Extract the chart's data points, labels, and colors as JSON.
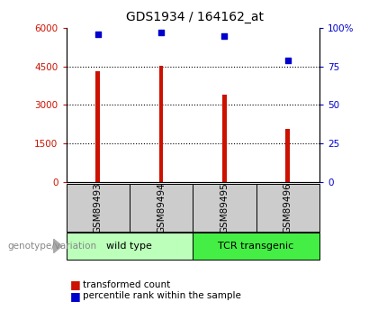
{
  "title": "GDS1934 / 164162_at",
  "samples": [
    "GSM89493",
    "GSM89494",
    "GSM89495",
    "GSM89496"
  ],
  "bar_values": [
    4300,
    4520,
    3400,
    2050
  ],
  "percentile_values": [
    96,
    97,
    95,
    79
  ],
  "bar_color": "#cc1100",
  "dot_color": "#0000cc",
  "ylim_left": [
    0,
    6000
  ],
  "ylim_right": [
    0,
    100
  ],
  "yticks_left": [
    0,
    1500,
    3000,
    4500,
    6000
  ],
  "ytick_labels_left": [
    "0",
    "1500",
    "3000",
    "4500",
    "6000"
  ],
  "yticks_right": [
    0,
    25,
    50,
    75,
    100
  ],
  "ytick_labels_right": [
    "0",
    "25",
    "50",
    "75",
    "100%"
  ],
  "groups": [
    {
      "label": "wild type",
      "color": "#bbffbb",
      "indices": [
        0,
        1
      ]
    },
    {
      "label": "TCR transgenic",
      "color": "#44ee44",
      "indices": [
        2,
        3
      ]
    }
  ],
  "genotype_label": "genotype/variation",
  "legend_bar_label": "transformed count",
  "legend_dot_label": "percentile rank within the sample",
  "background_color": "#ffffff",
  "plot_bg_color": "#ffffff",
  "xlabel_area_color": "#cccccc",
  "bar_width": 0.07
}
